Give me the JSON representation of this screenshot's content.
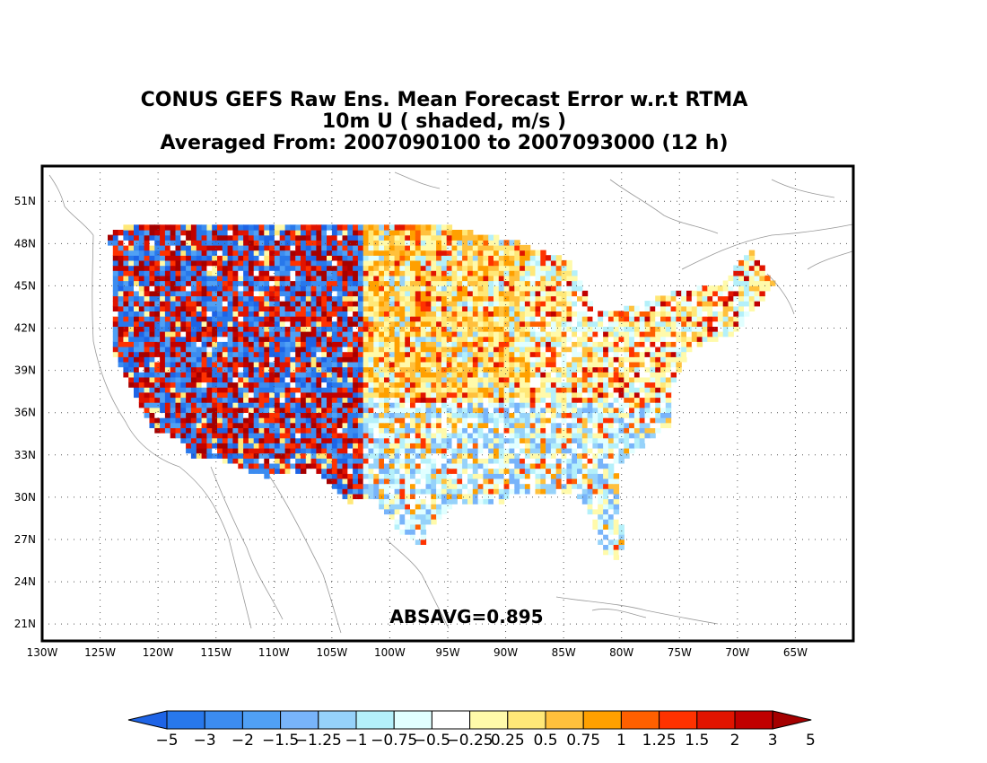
{
  "title": {
    "line1": "CONUS GEFS Raw Ens. Mean Forecast Error w.r.t RTMA",
    "line2": "10m U ( shaded, m/s )",
    "line3": "Averaged From: 2007090100 to 2007093000 (12 h)"
  },
  "map": {
    "region": "CONUS",
    "lat_ticks": [
      "21N",
      "24N",
      "27N",
      "30N",
      "33N",
      "36N",
      "39N",
      "42N",
      "45N",
      "48N",
      "51N"
    ],
    "lon_ticks": [
      "130W",
      "125W",
      "120W",
      "115W",
      "110W",
      "105W",
      "100W",
      "95W",
      "90W",
      "85W",
      "80W",
      "75W",
      "70W",
      "65W"
    ],
    "lat_range": [
      19.8,
      53.5
    ],
    "lon_range": [
      -130,
      -60
    ],
    "grid": true
  },
  "stat": {
    "label": "ABSAVG=0.895",
    "value": 0.895
  },
  "colorbar": {
    "labels": [
      "−5",
      "−3",
      "−2",
      "−1.5",
      "−1.25",
      "−1",
      "−0.75",
      "−0.5",
      "−0.25",
      "0.25",
      "0.5",
      "0.75",
      "1",
      "1.25",
      "1.5",
      "2",
      "3",
      "5"
    ],
    "colors": [
      "#1e64e6",
      "#2878eb",
      "#3c8cf0",
      "#50a0f5",
      "#78b4fa",
      "#96d2fa",
      "#b4f0fa",
      "#e1ffff",
      "#ffffff",
      "#fffaaa",
      "#ffe878",
      "#ffc03c",
      "#ffa000",
      "#ff6000",
      "#ff3200",
      "#e11400",
      "#c00000",
      "#a50000"
    ]
  },
  "chart_data": {
    "type": "heatmap",
    "title": "CONUS GEFS Raw Ens. Mean Forecast Error w.r.t RTMA",
    "subtitle": "10m U ( shaded, m/s )",
    "period": "Averaged From: 2007090100 to 2007093000 (12 h)",
    "colorbar_levels": [
      -5,
      -3,
      -2,
      -1.5,
      -1.25,
      -1,
      -0.75,
      -0.5,
      -0.25,
      0.25,
      0.5,
      0.75,
      1,
      1.25,
      1.5,
      2,
      3,
      5
    ],
    "absavg": 0.895,
    "xlim": [
      -130,
      -60
    ],
    "ylim": [
      19.8,
      53.5
    ]
  }
}
